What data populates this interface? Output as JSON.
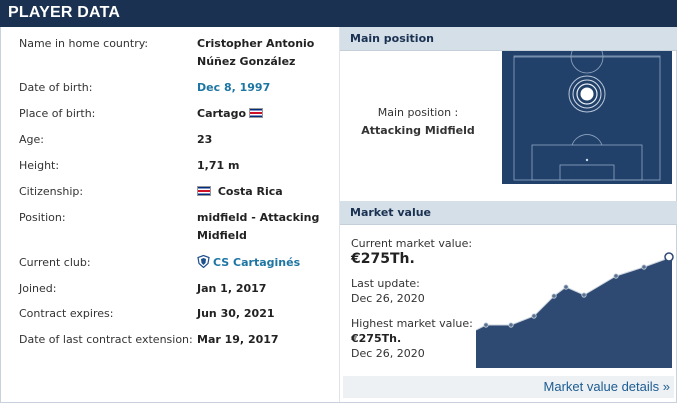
{
  "header": {
    "title": "PLAYER DATA"
  },
  "player_info": [
    {
      "label": "Name in home country:",
      "value": "Cristopher Antonio Núñez González"
    },
    {
      "label": "Date of birth:",
      "value": "Dec 8, 1997"
    },
    {
      "label": "Place of birth:",
      "value": "Cartago"
    },
    {
      "label": "Age:",
      "value": "23"
    },
    {
      "label": "Height:",
      "value": "1,71 m"
    },
    {
      "label": "Citizenship:",
      "value": "Costa Rica"
    },
    {
      "label": "Position:",
      "value": "midfield - Attacking Midfield"
    },
    {
      "label": "Current club:",
      "value": "CS Cartaginés"
    },
    {
      "label": "Joined:",
      "value": "Jan 1, 2017"
    },
    {
      "label": "Contract expires:",
      "value": "Jun 30, 2021"
    },
    {
      "label": "Date of last contract extension:",
      "value": "Mar 19, 2017"
    }
  ],
  "main_position": {
    "heading": "Main position",
    "caption_label": "Main position :",
    "caption_value": "Attacking Midfield"
  },
  "market_value": {
    "heading": "Market value",
    "current_label": "Current market value:",
    "current_value": "€275Th.",
    "last_update_label": "Last update:",
    "last_update_value": "Dec 26, 2020",
    "highest_label": "Highest market value:",
    "highest_value": "€275Th.",
    "highest_date": "Dec 26, 2020",
    "details_link": "Market value details »"
  },
  "colors": {
    "header_bg": "#1a3151",
    "link": "#1d75a3",
    "pitch": "#22416a",
    "graph_fill": "#2e4a73"
  },
  "icons": {
    "flag": "costa-rica-flag",
    "club": "club-crest-icon"
  }
}
